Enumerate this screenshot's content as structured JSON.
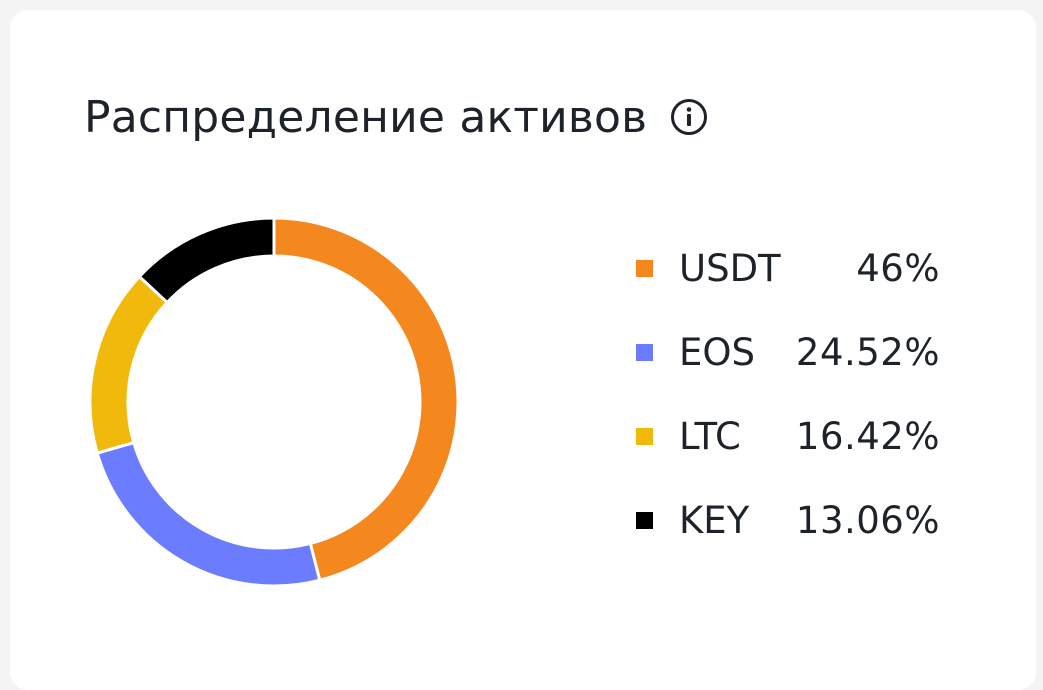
{
  "header": {
    "title": "Распределение активов",
    "info_icon": "info-circle-icon"
  },
  "chart_data": {
    "type": "pie",
    "subtype": "donut",
    "title": "Распределение активов",
    "categories": [
      "USDT",
      "EOS",
      "LTC",
      "KEY"
    ],
    "values": [
      46,
      24.52,
      16.42,
      13.06
    ],
    "value_labels": [
      "46%",
      "24.52%",
      "16.42%",
      "13.06%"
    ],
    "colors": [
      "#f5871f",
      "#6b7cff",
      "#f0b90b",
      "#000000"
    ],
    "legend_position": "right"
  },
  "colors": {
    "background": "#f4f4f5",
    "card": "#ffffff",
    "text": "#1e2329"
  }
}
